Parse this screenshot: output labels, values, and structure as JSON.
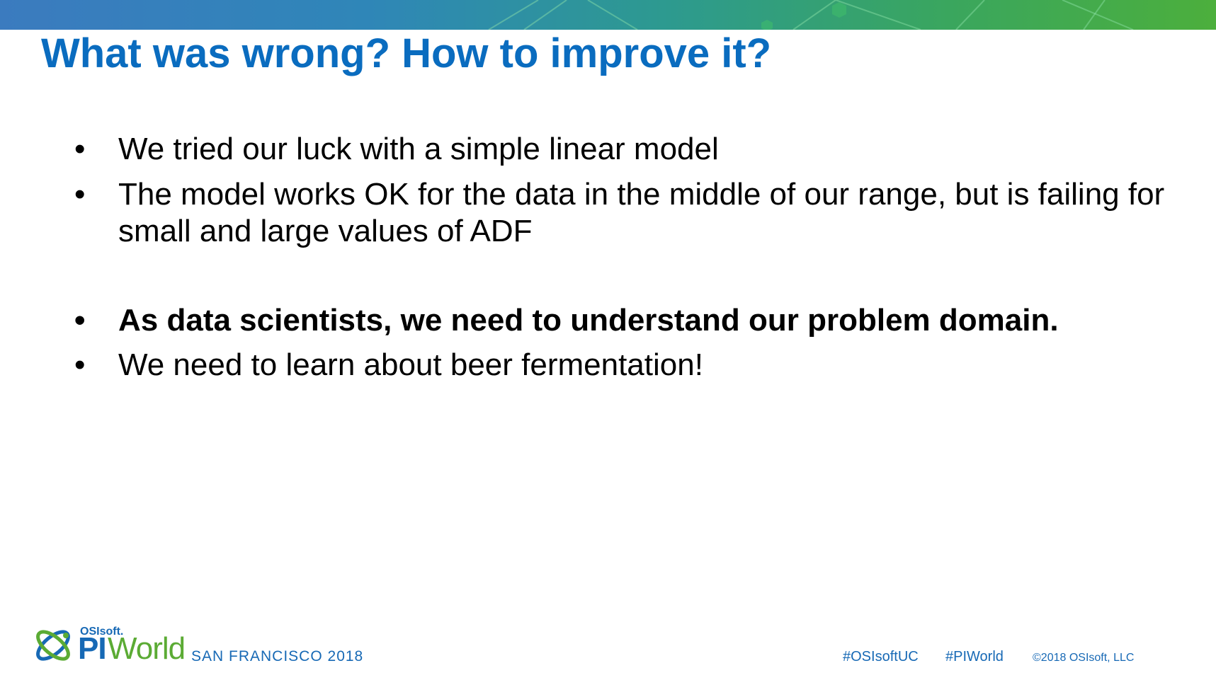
{
  "slide": {
    "title": "What was wrong? How to improve it?",
    "bullets": [
      {
        "marker": "•",
        "text": "We tried our luck with a simple linear model",
        "bold": false
      },
      {
        "marker": "•",
        "text": "The model works OK for the data in the middle of our range, but is failing for small and large values of ADF",
        "bold": false
      },
      {
        "marker": "•",
        "text": "As data scientists, we need to understand our problem domain.",
        "bold": true
      },
      {
        "marker": "•",
        "text": "We need to learn about beer fermentation!",
        "bold": false
      }
    ]
  },
  "footer": {
    "brand_small": "OSIsoft.",
    "brand_pi": "PI",
    "brand_world": "World",
    "location": "SAN FRANCISCO 2018",
    "hashtag_1": "#OSIsoftUC",
    "hashtag_2": "#PIWorld",
    "copyright": "©2018 OSIsoft, LLC"
  },
  "colors": {
    "title": "#0a6cbf",
    "brand_blue": "#1769b5",
    "brand_green": "#5bab34"
  }
}
